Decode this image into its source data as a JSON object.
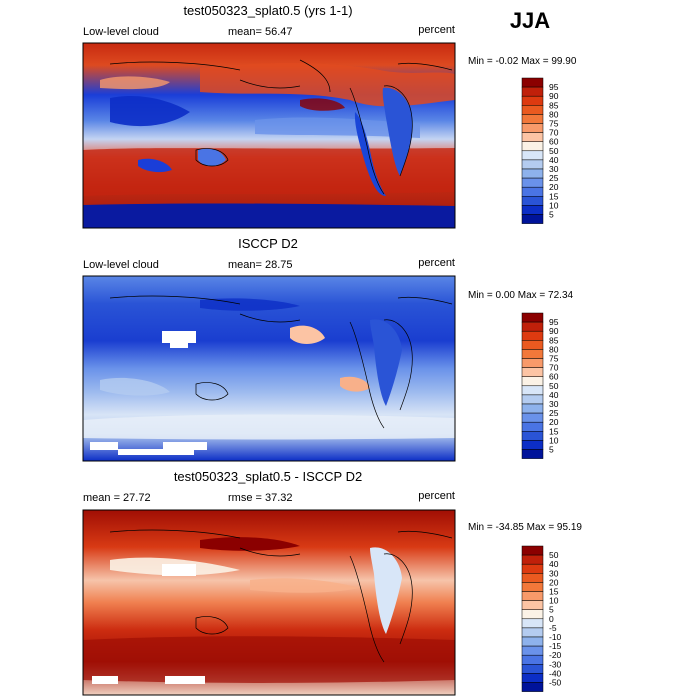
{
  "season": "JJA",
  "chart_data": [
    {
      "type": "heatmap",
      "title": "test050323_splat0.5 (yrs 1-1)",
      "variable": "Low-level cloud",
      "units": "percent",
      "mean_text": "mean=  56.47",
      "minmax_text": "Min =   -0.02 Max =   99.90",
      "min": -0.02,
      "max": 99.9,
      "levels": [
        "95",
        "90",
        "85",
        "80",
        "75",
        "70",
        "60",
        "50",
        "40",
        "30",
        "25",
        "20",
        "15",
        "10",
        "5"
      ],
      "colors": [
        "#8b0000",
        "#c0200a",
        "#dd3a10",
        "#ea5a20",
        "#f2783a",
        "#f89a6a",
        "#fcc4a4",
        "#fbf2e6",
        "#d8e6f8",
        "#b4ccf0",
        "#8eb2ec",
        "#6a92ea",
        "#4a74e4",
        "#2a54d6",
        "#0c2ec6",
        "#00139a"
      ]
    },
    {
      "type": "heatmap",
      "title": "ISCCP D2",
      "variable": "Low-level cloud",
      "units": "percent",
      "mean_text": "mean=  28.75",
      "minmax_text": "Min =    0.00 Max =   72.34",
      "min": 0.0,
      "max": 72.34,
      "levels": [
        "95",
        "90",
        "85",
        "80",
        "75",
        "70",
        "60",
        "50",
        "40",
        "30",
        "25",
        "20",
        "15",
        "10",
        "5"
      ],
      "colors": [
        "#8b0000",
        "#c0200a",
        "#dd3a10",
        "#ea5a20",
        "#f2783a",
        "#f89a6a",
        "#fcc4a4",
        "#fbf2e6",
        "#d8e6f8",
        "#b4ccf0",
        "#8eb2ec",
        "#6a92ea",
        "#4a74e4",
        "#2a54d6",
        "#0c2ec6",
        "#00139a"
      ]
    },
    {
      "type": "heatmap",
      "title": "test050323_splat0.5 - ISCCP D2",
      "variable": "",
      "units": "percent",
      "mean_text": "mean =   27.72",
      "rmse_text": "rmse =   37.32",
      "minmax_text": "Min =  -34.85 Max =   95.19",
      "min": -34.85,
      "max": 95.19,
      "levels": [
        "50",
        "40",
        "30",
        "20",
        "15",
        "10",
        "5",
        "0",
        "-5",
        "-10",
        "-15",
        "-20",
        "-30",
        "-40",
        "-50"
      ],
      "colors": [
        "#8b0000",
        "#c0200a",
        "#dd3a10",
        "#ea5a20",
        "#f2783a",
        "#f89a6a",
        "#fcc4a4",
        "#fbf2e6",
        "#d8e6f8",
        "#b4ccf0",
        "#8eb2ec",
        "#6a92ea",
        "#4a74e4",
        "#2a54d6",
        "#0c2ec6",
        "#00139a"
      ]
    }
  ]
}
